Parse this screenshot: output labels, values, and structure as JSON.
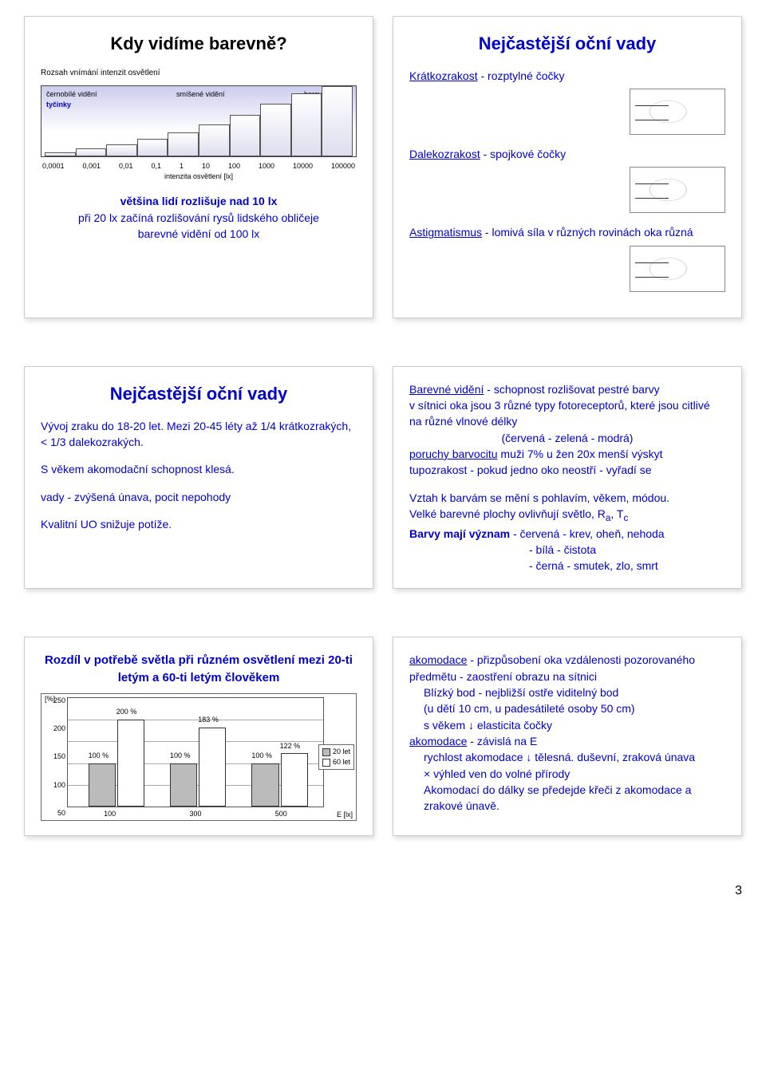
{
  "pagenum": "3",
  "s1": {
    "title": "Kdy vidíme barevně?",
    "chart": {
      "heading": "Rozsah vnímání intenzit osvětlení",
      "rows": [
        "černobílé vidění",
        "smíšené vidění",
        "barevné vidění"
      ],
      "rows2": [
        "tyčinky",
        "",
        "čípky"
      ],
      "xticks": [
        "0,0001",
        "0,001",
        "0,01",
        "0,1",
        "1",
        "10",
        "100",
        "1000",
        "10000",
        "100000"
      ],
      "xlabel": "intenzita osvětlení [lx]",
      "bar_heights_pct": [
        6,
        12,
        18,
        25,
        34,
        46,
        60,
        75,
        90,
        100
      ],
      "bar_fill": "#e6e6f0",
      "bar_border": "#555555",
      "bg_gradient_top": "#ccccee",
      "bg_gradient_bottom": "#ffffff"
    },
    "bullets": [
      "většina lidí rozlišuje nad 10 lx",
      "při 20 lx začíná rozlišování rysů lidského obličeje",
      "barevné vidění od 100 lx"
    ]
  },
  "s2": {
    "title": "Nejčastější oční vady",
    "items": [
      {
        "u": "Krátkozrakost",
        "rest": " - rozptylné čočky"
      },
      {
        "u": "Dalekozrakost",
        "rest": "  - spojkové čočky"
      },
      {
        "u": "Astigmatismus",
        "rest": " - lomivá síla v různých rovinách oka různá"
      }
    ]
  },
  "s3": {
    "title": "Nejčastější oční vady",
    "p1": "Vývoj zraku do 18-20 let. Mezi 20-45 léty až 1/4 krátkozrakých, < 1/3 dalekozrakých.",
    "p2": "S věkem akomodační schopnost klesá.",
    "p3": "vady - zvýšená únava, pocit nepohody",
    "p4": "Kvalitní UO snižuje potíže."
  },
  "s4": {
    "l1_u": "Barevné vidění",
    "l1_rest": " - schopnost rozlišovat pestré barvy",
    "l2": "v sítnici oka jsou 3 různé typy fotoreceptorů, které jsou citlivé na různé vlnové délky",
    "l3": "(červená - zelená - modrá)",
    "l4_u": "poruchy barvocitu",
    "l4_rest": " muži  7% u žen 20x menší výskyt",
    "l5": "tupozrakost - pokud jedno oko neostří - vyřadí se",
    "l6": "Vztah k barvám se mění s pohlavím, věkem, módou.",
    "l7a": "Velké barevné plochy ovlivňují světlo,  R",
    "l7b": "a",
    "l7c": ", T",
    "l7d": "c",
    "l8a": "Barvy mají význam",
    "l8b": "  - červená - krev, oheň, nehoda",
    "l9": "- bílá - čistota",
    "l10": "- černá - smutek, zlo, smrt"
  },
  "s5": {
    "title": "Rozdíl v potřebě světla při různém osvětlení mezi 20-ti letým a 60-ti letým člověkem",
    "chart": {
      "ylabel": "[%]",
      "yticks": [
        "250",
        "200",
        "150",
        "100",
        "50"
      ],
      "xlabel": "E [lx]",
      "xticks": [
        "100",
        "300",
        "500"
      ],
      "legend": [
        "20 let",
        "60 let"
      ],
      "groups": [
        {
          "b1_pct": 40,
          "b2_pct": 80,
          "b1_lbl": "100 %",
          "b2_lbl": "200 %"
        },
        {
          "b1_pct": 40,
          "b2_pct": 73,
          "b1_lbl": "100 %",
          "b2_lbl": "183 %"
        },
        {
          "b1_pct": 40,
          "b2_pct": 49,
          "b1_lbl": "100 %",
          "b2_lbl": "122 %"
        }
      ],
      "bar1_fill": "#bbbbbb",
      "bar2_fill": "#ffffff",
      "border_color": "#333333",
      "grid_color": "#aaaaaa"
    }
  },
  "s6": {
    "l1_u": "akomodace",
    "l1_rest": " - přizpůsobení oka vzdálenosti pozorovaného předmětu - zaostření obrazu na sítnici",
    "l2": "Blízký bod - nejbližší ostře viditelný bod",
    "l3": "(u dětí 10 cm, u padesátileté osoby 50 cm)",
    "l4": " s věkem ↓ elasticita čočky",
    "l5_u": "akomodace",
    "l5_rest": " - závislá na E",
    "l6": "rychlost akomodace ↓ tělesná. duševní, zraková únava",
    "l7": "× výhled ven do volné přírody",
    "l8": "Akomodací do dálky se předejde křeči z akomodace a zrakové únavě."
  }
}
